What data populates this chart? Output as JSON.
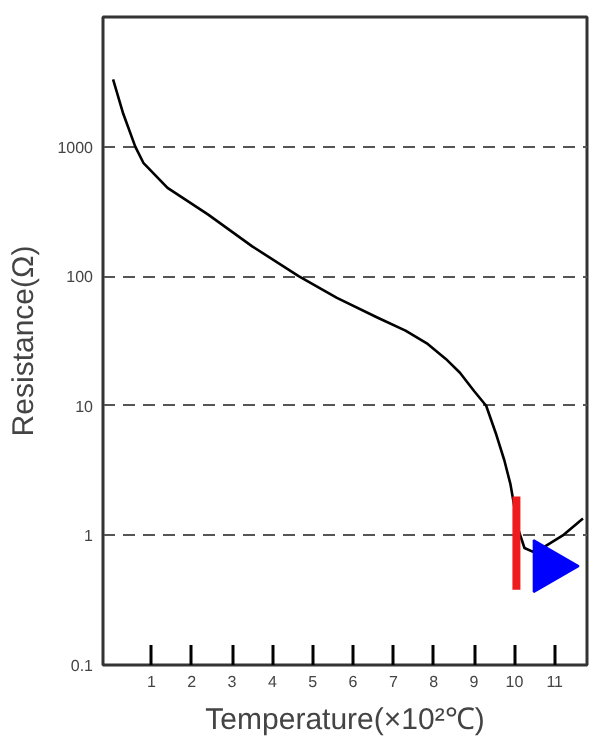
{
  "chart_data": {
    "type": "line",
    "xlabel": "Temperature(×10²℃)",
    "ylabel": "Resistance(Ω)",
    "log": "y",
    "grid": "y",
    "xlim": [
      -0.2,
      11.8
    ],
    "ylim": [
      0.1,
      10000
    ],
    "xticks": [
      1,
      2,
      3,
      4,
      5,
      6,
      7,
      8,
      9,
      10,
      11
    ],
    "yticks": [
      {
        "value": 0.1,
        "label": "0.1"
      },
      1,
      10,
      100,
      1000
    ],
    "series": [
      {
        "color": "#000000",
        "x": [
          0.05,
          0.3,
          0.6,
          0.8,
          1.4,
          2.4,
          3.5,
          4.65,
          5.6,
          6.6,
          7.3,
          7.85,
          8.3,
          8.65,
          9.0,
          9.3,
          9.55,
          9.75,
          9.9,
          10.1,
          10.25,
          10.45,
          10.7,
          11.2,
          11.7
        ],
        "values": [
          3300,
          1800,
          1000,
          750,
          480,
          300,
          170,
          100,
          68,
          48,
          38,
          30,
          23,
          18,
          13,
          10,
          6,
          3.8,
          2.5,
          1.1,
          0.8,
          0.75,
          0.8,
          1.0,
          1.35
        ]
      },
      {
        "type": "line",
        "color": "#ee1c1c",
        "x": [
          10.05,
          10.05
        ],
        "values": [
          0.38,
          2
        ]
      },
      {
        "type": "scatter",
        "marker": "triangle",
        "color": "#0000ff",
        "x": [
          10.85
        ],
        "values": [
          0.58
        ]
      }
    ]
  }
}
